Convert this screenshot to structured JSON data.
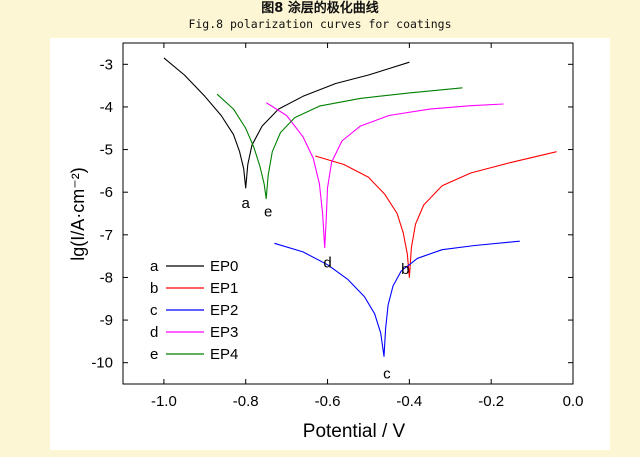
{
  "caption": {
    "zh": "图8 涂层的极化曲线",
    "en": "Fig.8 polarization curves for coatings"
  },
  "chart_data": {
    "type": "line",
    "xlabel": "Potential / V",
    "ylabel": "lg(I/A·cm⁻²)",
    "xlim": [
      -1.1,
      0.0
    ],
    "ylim": [
      -10.5,
      -2.5
    ],
    "xticks": [
      "-1.0",
      "-0.8",
      "-0.6",
      "-0.4",
      "-0.2",
      "0.0"
    ],
    "yticks": [
      "-3",
      "-4",
      "-5",
      "-6",
      "-7",
      "-8",
      "-9",
      "-10"
    ],
    "grid": false,
    "legend_position": "bottom-left",
    "series": [
      {
        "name": "EP0",
        "letter": "a",
        "color": "#000000",
        "x": [
          -1.0,
          -0.95,
          -0.9,
          -0.86,
          -0.83,
          -0.815,
          -0.805,
          -0.8,
          -0.795,
          -0.785,
          -0.76,
          -0.72,
          -0.66,
          -0.58,
          -0.5,
          -0.45,
          -0.4
        ],
        "y": [
          -2.85,
          -3.25,
          -3.75,
          -4.2,
          -4.65,
          -5.05,
          -5.45,
          -5.9,
          -5.35,
          -4.9,
          -4.45,
          -4.05,
          -3.75,
          -3.45,
          -3.25,
          -3.1,
          -2.95
        ]
      },
      {
        "name": "EP1",
        "letter": "b",
        "color": "#ff0000",
        "x": [
          -0.63,
          -0.56,
          -0.5,
          -0.46,
          -0.43,
          -0.415,
          -0.405,
          -0.4,
          -0.395,
          -0.385,
          -0.365,
          -0.32,
          -0.25,
          -0.15,
          -0.04
        ],
        "y": [
          -5.15,
          -5.35,
          -5.65,
          -6.05,
          -6.5,
          -6.95,
          -7.45,
          -8.0,
          -7.3,
          -6.75,
          -6.3,
          -5.85,
          -5.55,
          -5.3,
          -5.05
        ]
      },
      {
        "name": "EP2",
        "letter": "c",
        "color": "#0000ff",
        "x": [
          -0.73,
          -0.66,
          -0.6,
          -0.55,
          -0.51,
          -0.485,
          -0.47,
          -0.462,
          -0.458,
          -0.452,
          -0.44,
          -0.42,
          -0.38,
          -0.32,
          -0.24,
          -0.13
        ],
        "y": [
          -7.2,
          -7.4,
          -7.7,
          -8.05,
          -8.45,
          -8.85,
          -9.3,
          -9.85,
          -9.2,
          -8.65,
          -8.2,
          -7.85,
          -7.55,
          -7.35,
          -7.25,
          -7.15
        ]
      },
      {
        "name": "EP3",
        "letter": "d",
        "color": "#ff00ff",
        "x": [
          -0.75,
          -0.7,
          -0.66,
          -0.635,
          -0.62,
          -0.612,
          -0.607,
          -0.603,
          -0.6,
          -0.59,
          -0.565,
          -0.52,
          -0.45,
          -0.35,
          -0.25,
          -0.17
        ],
        "y": [
          -3.9,
          -4.2,
          -4.7,
          -5.2,
          -5.8,
          -6.5,
          -7.3,
          -6.6,
          -5.9,
          -5.3,
          -4.8,
          -4.45,
          -4.2,
          -4.05,
          -3.97,
          -3.93
        ]
      },
      {
        "name": "EP4",
        "letter": "e",
        "color": "#008000",
        "x": [
          -0.87,
          -0.83,
          -0.8,
          -0.78,
          -0.765,
          -0.755,
          -0.75,
          -0.745,
          -0.735,
          -0.715,
          -0.68,
          -0.62,
          -0.52,
          -0.4,
          -0.27
        ],
        "y": [
          -3.7,
          -4.05,
          -4.5,
          -4.95,
          -5.4,
          -5.8,
          -6.15,
          -5.6,
          -5.05,
          -4.6,
          -4.25,
          -3.98,
          -3.8,
          -3.67,
          -3.55
        ]
      }
    ],
    "curve_labels": [
      {
        "text": "a",
        "x": -0.8,
        "y": -6.25
      },
      {
        "text": "e",
        "x": -0.745,
        "y": -6.45
      },
      {
        "text": "d",
        "x": -0.6,
        "y": -7.65
      },
      {
        "text": "b",
        "x": -0.41,
        "y": -7.8
      },
      {
        "text": "c",
        "x": -0.455,
        "y": -10.25
      }
    ]
  }
}
